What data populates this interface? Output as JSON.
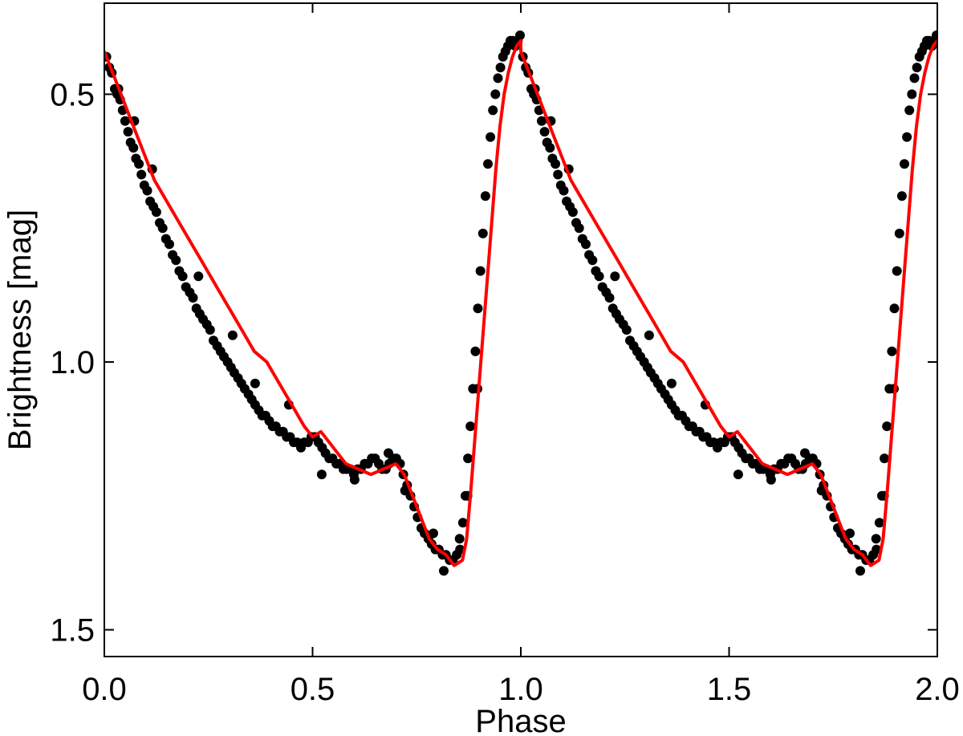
{
  "chart_data": {
    "type": "scatter",
    "xlabel": "Phase",
    "ylabel": "Brightness [mag]",
    "xlim": [
      0.0,
      2.0
    ],
    "ylim": [
      1.55,
      0.33
    ],
    "y_inverted": true,
    "grid": false,
    "x_ticks": [
      {
        "value": 0.0,
        "label": "0.0"
      },
      {
        "value": 0.5,
        "label": "0.5"
      },
      {
        "value": 1.0,
        "label": "1.0"
      },
      {
        "value": 1.5,
        "label": "1.5"
      },
      {
        "value": 2.0,
        "label": "2.0"
      }
    ],
    "y_ticks": [
      {
        "value": 0.5,
        "label": "0.5"
      },
      {
        "value": 1.0,
        "label": "1.0"
      },
      {
        "value": 1.5,
        "label": "1.5"
      }
    ],
    "colors": {
      "points": "#000000",
      "fit": "#ff0000",
      "axes": "#000000"
    },
    "series": [
      {
        "kind": "fit-curve",
        "color": "#ff0000",
        "x": [
          0.0,
          0.02,
          0.04,
          0.06,
          0.08,
          0.1,
          0.12,
          0.15,
          0.18,
          0.21,
          0.24,
          0.27,
          0.3,
          0.33,
          0.36,
          0.39,
          0.42,
          0.45,
          0.48,
          0.5,
          0.52,
          0.55,
          0.58,
          0.61,
          0.64,
          0.67,
          0.7,
          0.72,
          0.74,
          0.76,
          0.78,
          0.8,
          0.82,
          0.84,
          0.86,
          0.87,
          0.88,
          0.89,
          0.9,
          0.91,
          0.92,
          0.93,
          0.94,
          0.95,
          0.96,
          0.97,
          0.98,
          0.99,
          1.0
        ],
        "y": [
          0.42,
          0.46,
          0.5,
          0.54,
          0.58,
          0.62,
          0.66,
          0.7,
          0.74,
          0.78,
          0.82,
          0.86,
          0.9,
          0.94,
          0.98,
          1.0,
          1.04,
          1.08,
          1.12,
          1.14,
          1.13,
          1.16,
          1.19,
          1.2,
          1.21,
          1.2,
          1.19,
          1.21,
          1.25,
          1.29,
          1.33,
          1.35,
          1.36,
          1.38,
          1.37,
          1.33,
          1.24,
          1.14,
          1.04,
          0.94,
          0.84,
          0.74,
          0.64,
          0.56,
          0.5,
          0.46,
          0.43,
          0.41,
          0.4
        ]
      },
      {
        "kind": "observations",
        "color": "#000000",
        "x": [
          0.005,
          0.012,
          0.018,
          0.025,
          0.031,
          0.038,
          0.044,
          0.05,
          0.057,
          0.063,
          0.07,
          0.076,
          0.083,
          0.089,
          0.096,
          0.103,
          0.11,
          0.118,
          0.125,
          0.133,
          0.14,
          0.148,
          0.156,
          0.164,
          0.172,
          0.18,
          0.188,
          0.196,
          0.205,
          0.213,
          0.221,
          0.229,
          0.237,
          0.246,
          0.254,
          0.262,
          0.271,
          0.279,
          0.287,
          0.296,
          0.304,
          0.312,
          0.321,
          0.329,
          0.337,
          0.346,
          0.354,
          0.362,
          0.371,
          0.379,
          0.387,
          0.396,
          0.404,
          0.412,
          0.421,
          0.429,
          0.438,
          0.446,
          0.455,
          0.463,
          0.472,
          0.48,
          0.489,
          0.497,
          0.506,
          0.514,
          0.523,
          0.531,
          0.54,
          0.548,
          0.557,
          0.565,
          0.574,
          0.582,
          0.591,
          0.599,
          0.608,
          0.616,
          0.625,
          0.633,
          0.642,
          0.65,
          0.659,
          0.667,
          0.676,
          0.684,
          0.693,
          0.701,
          0.71,
          0.718,
          0.727,
          0.735,
          0.744,
          0.752,
          0.761,
          0.769,
          0.778,
          0.786,
          0.795,
          0.803,
          0.812,
          0.82,
          0.829,
          0.837,
          0.846,
          0.854,
          0.861,
          0.867,
          0.873,
          0.879,
          0.885,
          0.891,
          0.897,
          0.903,
          0.909,
          0.915,
          0.921,
          0.927,
          0.933,
          0.939,
          0.945,
          0.951,
          0.957,
          0.963,
          0.969,
          0.975,
          0.981,
          0.987,
          0.993,
          0.998,
          0.034,
          0.072,
          0.115,
          0.226,
          0.308,
          0.362,
          0.443,
          0.522,
          0.601,
          0.682,
          0.722,
          0.79,
          0.815,
          0.853,
          0.872,
          0.896
        ],
        "y": [
          0.43,
          0.45,
          0.46,
          0.49,
          0.5,
          0.51,
          0.53,
          0.55,
          0.57,
          0.59,
          0.6,
          0.62,
          0.63,
          0.65,
          0.67,
          0.68,
          0.7,
          0.71,
          0.72,
          0.74,
          0.75,
          0.77,
          0.78,
          0.8,
          0.81,
          0.83,
          0.84,
          0.86,
          0.87,
          0.88,
          0.9,
          0.91,
          0.92,
          0.93,
          0.94,
          0.96,
          0.97,
          0.98,
          0.99,
          1.0,
          1.01,
          1.02,
          1.03,
          1.04,
          1.05,
          1.06,
          1.07,
          1.08,
          1.09,
          1.1,
          1.1,
          1.11,
          1.12,
          1.12,
          1.13,
          1.13,
          1.14,
          1.14,
          1.15,
          1.15,
          1.16,
          1.15,
          1.15,
          1.14,
          1.14,
          1.15,
          1.16,
          1.17,
          1.18,
          1.18,
          1.19,
          1.19,
          1.2,
          1.2,
          1.2,
          1.21,
          1.2,
          1.2,
          1.19,
          1.19,
          1.18,
          1.18,
          1.19,
          1.2,
          1.2,
          1.19,
          1.18,
          1.18,
          1.19,
          1.21,
          1.23,
          1.25,
          1.27,
          1.29,
          1.31,
          1.32,
          1.33,
          1.34,
          1.35,
          1.35,
          1.36,
          1.36,
          1.37,
          1.37,
          1.36,
          1.35,
          1.3,
          1.25,
          1.18,
          1.12,
          1.05,
          0.98,
          0.9,
          0.83,
          0.76,
          0.69,
          0.63,
          0.58,
          0.53,
          0.5,
          0.47,
          0.45,
          0.43,
          0.42,
          0.41,
          0.4,
          0.4,
          0.41,
          0.4,
          0.39,
          0.49,
          0.55,
          0.64,
          0.84,
          0.95,
          1.04,
          1.08,
          1.21,
          1.22,
          1.17,
          1.24,
          1.32,
          1.39,
          1.33,
          1.25,
          1.05
        ],
        "mirrored_period": 1.0
      }
    ]
  }
}
